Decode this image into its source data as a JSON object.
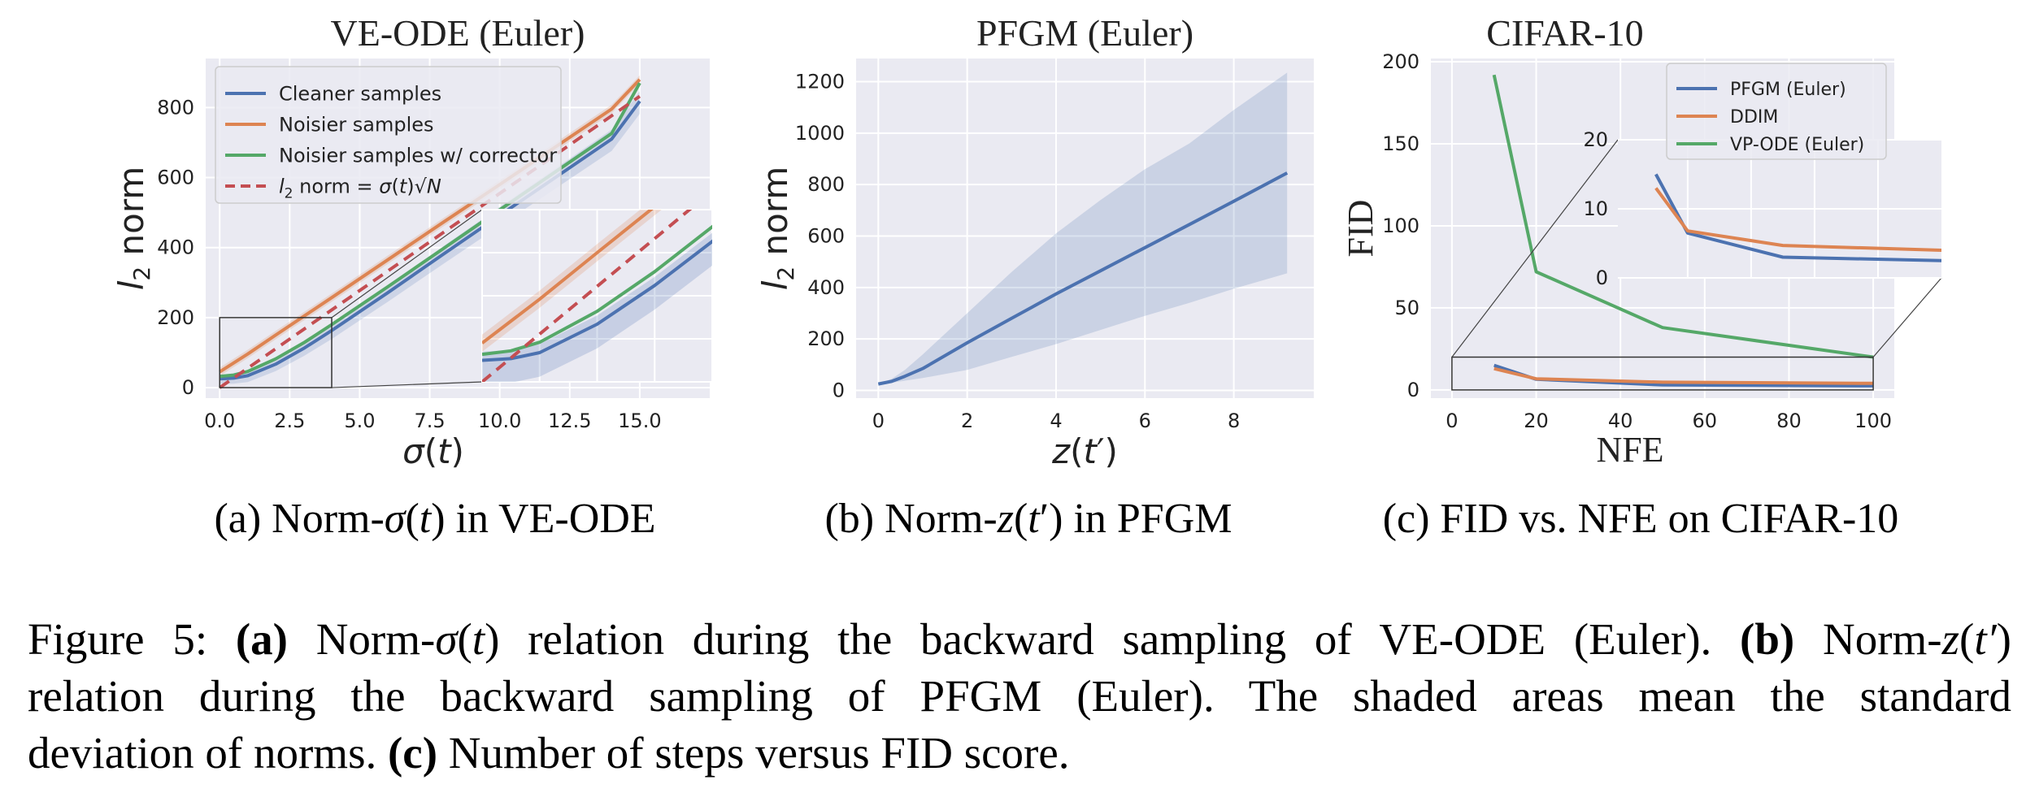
{
  "figure": {
    "caption_lines": [
      [
        "Figure 5: ",
        {
          "b": "(a)"
        },
        " Norm-",
        {
          "i": "σ"
        },
        "(",
        {
          "i": "t"
        },
        ") relation during the backward sampling of VE-ODE (Euler). ",
        {
          "b": "(b)"
        },
        " Norm-",
        {
          "i": "z"
        },
        "(",
        {
          "i": "t′"
        },
        ")"
      ],
      [
        "relation during the backward sampling of PFGM (Euler).  The shaded areas mean the standard"
      ],
      [
        "deviation of norms. ",
        {
          "b": "(c)"
        },
        " Number of steps versus FID score."
      ]
    ]
  },
  "panels": {
    "a": {
      "title": "VE-ODE (Euler)",
      "xlabel": "σ(t)",
      "ylabel": "l₂ norm",
      "subcaption": "(a) Norm-σ(t) in VE-ODE"
    },
    "b": {
      "title": "PFGM (Euler)",
      "xlabel": "z(t′)",
      "ylabel": "l₂ norm",
      "subcaption": "(b) Norm-z(t′) in PFGM"
    },
    "c": {
      "title": "CIFAR-10",
      "xlabel": "NFE",
      "ylabel": "FID",
      "subcaption": "(c) FID vs. NFE on CIFAR-10"
    }
  },
  "colors": {
    "blue": "#4c72b0",
    "orange": "#dd8452",
    "green": "#55a868",
    "red": "#c44e52",
    "bg": "#eaeaf2"
  },
  "chart_data": [
    {
      "type": "line",
      "id": "a",
      "title": "VE-ODE (Euler)",
      "xlabel": "σ(t)",
      "ylabel": "l₂ norm",
      "xlim": [
        -0.5,
        17.5
      ],
      "ylim": [
        -30,
        940
      ],
      "xticks": [
        "0.0",
        "2.5",
        "5.0",
        "7.5",
        "10.0",
        "12.5",
        "15.0"
      ],
      "xtick_values": [
        0,
        2.5,
        5,
        7.5,
        10,
        12.5,
        15
      ],
      "yticks": [
        "0",
        "200",
        "400",
        "600",
        "800"
      ],
      "ytick_values": [
        0,
        200,
        400,
        600,
        800
      ],
      "grid": true,
      "legend_position": "top-left",
      "series": [
        {
          "name": "Cleaner samples",
          "color": "#4c72b0",
          "style": "solid",
          "x": [
            0,
            0.5,
            1,
            2,
            3,
            4,
            6,
            8,
            10,
            12,
            14,
            15
          ],
          "y": [
            25,
            27,
            34,
            67,
            112,
            163,
            271,
            382,
            492,
            601,
            710,
            818
          ]
        },
        {
          "name": "Noisier samples",
          "color": "#dd8452",
          "style": "solid",
          "x": [
            0,
            1,
            2,
            4,
            6,
            8,
            10,
            12,
            14,
            15
          ],
          "y": [
            45,
            96,
            150,
            257,
            365,
            473,
            580,
            688,
            796,
            880
          ]
        },
        {
          "name": "Noisier samples w/ corrector",
          "color": "#55a868",
          "style": "solid",
          "x": [
            0,
            0.5,
            1,
            2,
            3,
            4,
            6,
            8,
            10,
            12,
            14,
            15
          ],
          "y": [
            32,
            36,
            46,
            82,
            128,
            180,
            288,
            398,
            508,
            617,
            726,
            870
          ]
        },
        {
          "name": "l₂ norm = σ(t)√N",
          "color": "#c44e52",
          "style": "dashed",
          "x": [
            0,
            15
          ],
          "y": [
            0,
            832
          ]
        }
      ],
      "inset": {
        "xlim": [
          0,
          4
        ],
        "ylim": [
          0,
          200
        ]
      }
    },
    {
      "type": "line",
      "id": "b",
      "title": "PFGM (Euler)",
      "xlabel": "z(t′)",
      "ylabel": "l₂ norm",
      "xlim": [
        -0.5,
        9.8
      ],
      "ylim": [
        -30,
        1290
      ],
      "xticks": [
        "0",
        "2",
        "4",
        "6",
        "8"
      ],
      "xtick_values": [
        0,
        2,
        4,
        6,
        8
      ],
      "yticks": [
        "0",
        "200",
        "400",
        "600",
        "800",
        "1000",
        "1200"
      ],
      "ytick_values": [
        0,
        200,
        400,
        600,
        800,
        1000,
        1200
      ],
      "grid": true,
      "series": [
        {
          "name": "",
          "color": "#4c72b0",
          "style": "solid",
          "x": [
            0,
            0.3,
            0.6,
            1,
            2,
            3,
            4,
            5,
            6,
            7,
            8,
            9.2
          ],
          "y": [
            25,
            35,
            55,
            85,
            185,
            280,
            375,
            465,
            555,
            645,
            735,
            845
          ],
          "std_low": [
            25,
            30,
            38,
            48,
            80,
            130,
            180,
            235,
            290,
            340,
            395,
            455
          ],
          "std_high": [
            25,
            45,
            80,
            140,
            300,
            460,
            610,
            740,
            860,
            960,
            1090,
            1235
          ]
        }
      ]
    },
    {
      "type": "line",
      "id": "c",
      "title": "CIFAR-10",
      "xlabel": "NFE",
      "ylabel": "FID",
      "xlim": [
        -5,
        105
      ],
      "ylim": [
        -5,
        202
      ],
      "xticks": [
        "0",
        "20",
        "40",
        "60",
        "80",
        "100"
      ],
      "xtick_values": [
        0,
        20,
        40,
        60,
        80,
        100
      ],
      "yticks": [
        "0",
        "50",
        "100",
        "150",
        "200"
      ],
      "ytick_values": [
        0,
        50,
        100,
        150,
        200
      ],
      "grid": true,
      "legend_position": "top-right",
      "series": [
        {
          "name": "PFGM (Euler)",
          "color": "#4c72b0",
          "style": "solid",
          "x": [
            10,
            20,
            50,
            100
          ],
          "y": [
            15,
            6.5,
            3.0,
            2.5
          ]
        },
        {
          "name": "DDIM",
          "color": "#dd8452",
          "style": "solid",
          "x": [
            10,
            20,
            50,
            100
          ],
          "y": [
            13,
            6.8,
            4.7,
            4.0
          ]
        },
        {
          "name": "VP-ODE (Euler)",
          "color": "#55a868",
          "style": "solid",
          "x": [
            10,
            20,
            50,
            100
          ],
          "y": [
            192,
            72,
            38,
            20
          ]
        }
      ],
      "inset": {
        "xlim": [
          8,
          100
        ],
        "ylim": [
          0,
          20
        ],
        "yticks": [
          "0",
          "10",
          "20"
        ],
        "ytick_values": [
          0,
          10,
          20
        ]
      }
    }
  ]
}
